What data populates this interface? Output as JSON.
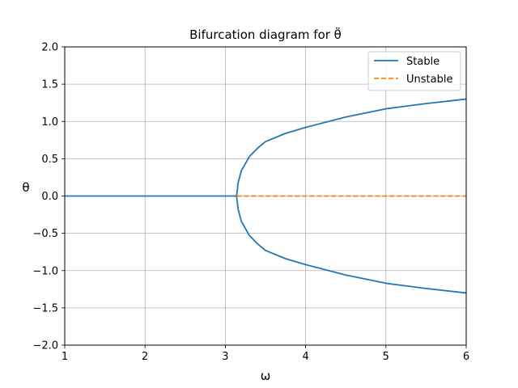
{
  "chart_data": {
    "type": "line",
    "title": "Bifurcation diagram for θ̈",
    "xlabel": "ω",
    "ylabel": "θ",
    "xlim": [
      1,
      6
    ],
    "ylim": [
      -2.0,
      2.0
    ],
    "xticks": [
      1,
      2,
      3,
      4,
      5,
      6
    ],
    "xtick_labels": [
      "1",
      "2",
      "3",
      "4",
      "5",
      "6"
    ],
    "yticks": [
      -2.0,
      -1.5,
      -1.0,
      -0.5,
      0.0,
      0.5,
      1.0,
      1.5,
      2.0
    ],
    "ytick_labels": [
      "−2.0",
      "−1.5",
      "−1.0",
      "−0.5",
      "0.0",
      "0.5",
      "1.0",
      "1.5",
      "2.0"
    ],
    "grid": true,
    "legend_position": "top-right",
    "series": [
      {
        "name": "Stable",
        "color": "#1f77b4",
        "style": "solid",
        "segments": [
          {
            "x": [
              1,
              1.5,
              2,
              2.5,
              3,
              3.14
            ],
            "y": [
              0,
              0,
              0,
              0,
              0,
              0
            ]
          },
          {
            "x": [
              3.14,
              3.16,
              3.2,
              3.3,
              3.4,
              3.5,
              3.75,
              4.0,
              4.5,
              5.0,
              5.5,
              6.0
            ],
            "y": [
              0.0,
              0.18,
              0.34,
              0.53,
              0.64,
              0.73,
              0.84,
              0.92,
              1.06,
              1.17,
              1.24,
              1.3
            ]
          },
          {
            "x": [
              3.14,
              3.16,
              3.2,
              3.3,
              3.4,
              3.5,
              3.75,
              4.0,
              4.5,
              5.0,
              5.5,
              6.0
            ],
            "y": [
              0.0,
              -0.18,
              -0.34,
              -0.53,
              -0.64,
              -0.73,
              -0.84,
              -0.92,
              -1.06,
              -1.17,
              -1.24,
              -1.3
            ]
          }
        ]
      },
      {
        "name": "Unstable",
        "color": "#ff7f0e",
        "style": "dashed",
        "segments": [
          {
            "x": [
              3.14,
              6.0
            ],
            "y": [
              0,
              0
            ]
          }
        ]
      }
    ]
  }
}
